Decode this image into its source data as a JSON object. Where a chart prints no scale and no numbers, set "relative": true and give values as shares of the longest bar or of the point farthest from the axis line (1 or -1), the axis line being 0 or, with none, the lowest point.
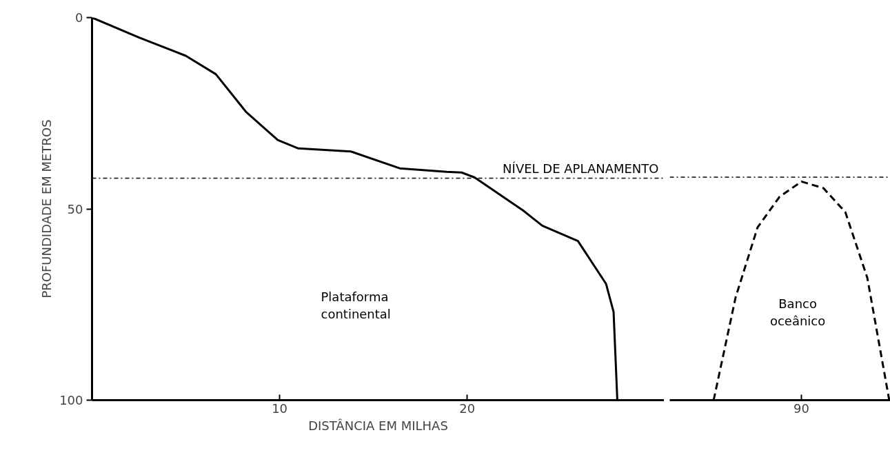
{
  "chart_data": [
    {
      "type": "line",
      "xlabel": "DISTÂNCIA EM MILHAS",
      "ylabel": "PROFUNDIDADE EM METROS",
      "xlim": [
        0,
        30.5
      ],
      "ylim": [
        100,
        0
      ],
      "xticks": [
        10,
        20
      ],
      "yticks": [
        0,
        50,
        100
      ],
      "grid": false,
      "series": [
        {
          "color": "#000000",
          "line_style": "solid",
          "x": [
            0,
            2.5,
            5.0,
            6.6,
            8.2,
            9.9,
            11.0,
            13.8,
            16.4,
            18.9,
            19.7,
            20.4,
            23.0,
            24.0,
            25.9,
            27.4,
            27.8,
            28.0
          ],
          "values": [
            0,
            5.2,
            10,
            14.8,
            24.6,
            32,
            34.2,
            35,
            39.4,
            40.3,
            40.5,
            41.8,
            50.5,
            54.4,
            58.4,
            69.6,
            76.9,
            100
          ]
        }
      ],
      "ref_lines": [
        {
          "axis": "y",
          "value": 42,
          "label": "NÍVEL DE APLANAMENTO",
          "line_style": "dashdot",
          "color": "#000000"
        }
      ],
      "annotations": [
        "Plataforma\ncontinental"
      ]
    },
    {
      "type": "line",
      "relative": true,
      "grid": false,
      "categories": [
        null,
        null,
        null,
        null,
        null,
        null,
        null,
        null,
        null
      ],
      "series": [
        {
          "color": "#000000",
          "line_style": "dashed",
          "values": [
            0,
            0.47,
            0.79,
            0.93,
            1,
            0.97,
            0.86,
            0.56,
            0
          ]
        }
      ],
      "ref_lines": [
        {
          "axis": "y",
          "value": 1.02,
          "line_style": "dashdot",
          "color": "#000000"
        }
      ],
      "annotations": [
        "Banco\noceânico",
        "90"
      ]
    }
  ]
}
